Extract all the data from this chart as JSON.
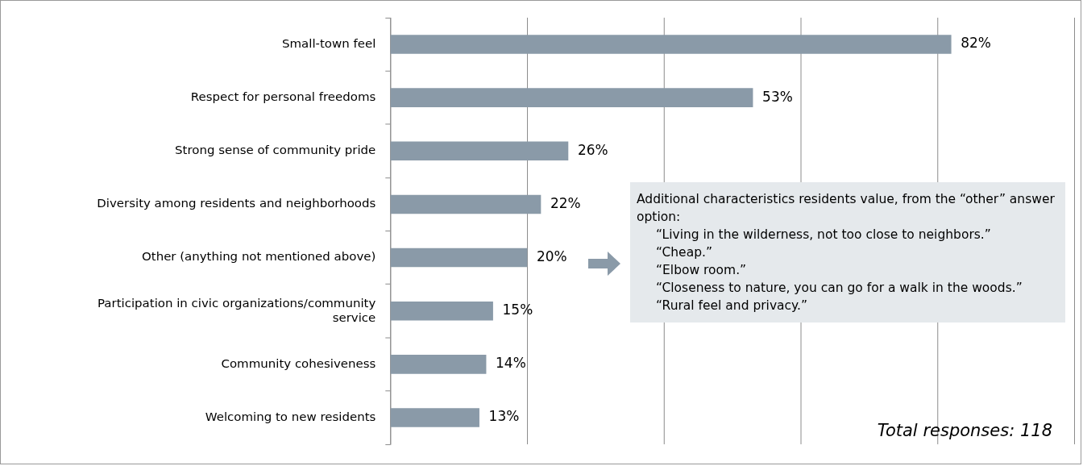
{
  "chart_data": {
    "type": "bar",
    "orientation": "horizontal",
    "categories": [
      "Small-town feel",
      "Respect for personal freedoms",
      "Strong sense of community pride",
      "Diversity among residents and neighborhoods",
      "Other (anything not mentioned above)",
      "Participation in civic organizations/community service",
      "Community cohesiveness",
      "Welcoming to new residents"
    ],
    "values": [
      82,
      53,
      26,
      22,
      20,
      15,
      14,
      13
    ],
    "value_labels": [
      "82%",
      "53%",
      "26%",
      "22%",
      "20%",
      "15%",
      "14%",
      "13%"
    ],
    "color": "#8a9aa8",
    "xlim": [
      0,
      100
    ],
    "xticks": [
      {
        "value": 0,
        "label": null
      },
      {
        "value": 20,
        "label": null
      },
      {
        "value": 40,
        "label": null
      },
      {
        "value": 60,
        "label": null
      },
      {
        "value": 80,
        "label": null
      },
      {
        "value": 100,
        "label": null
      }
    ],
    "grid": "x",
    "tick_labels": "y",
    "legend": false,
    "annotations": [
      "Additional characteristics residents value, from the “other” answer option:",
      "“Living in the wilderness, not too close to neighbors.”",
      "“Cheap.”",
      "“Elbow room.”",
      "“Closeness to nature, you can go for a walk in the woods.”",
      "“Rural feel and privacy.”",
      "Total responses: 118"
    ]
  }
}
